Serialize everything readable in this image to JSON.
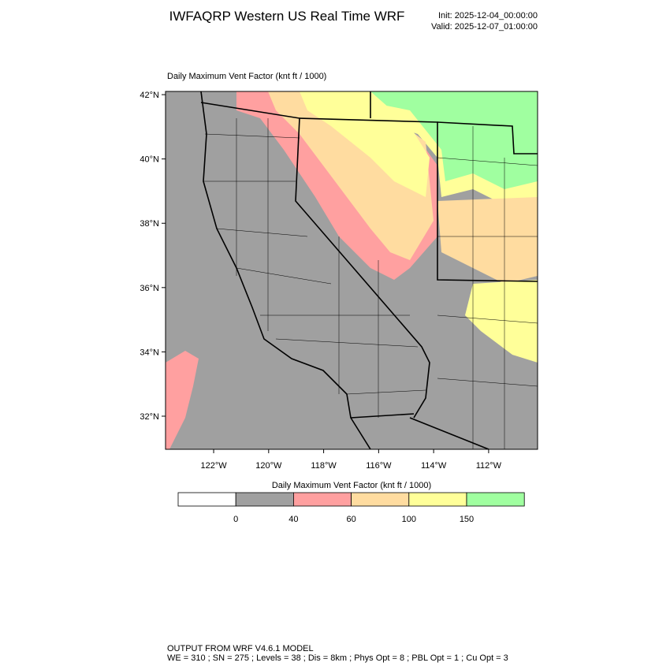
{
  "header": {
    "title": "IWFAQRP Western US Real Time WRF",
    "init": "Init: 2025-12-04_00:00:00",
    "valid": "Valid: 2025-12-07_01:00:00"
  },
  "map": {
    "title": "Daily Maximum Vent Factor   (knt ft / 1000)",
    "lonlim": [
      -123.75,
      -110.22
    ],
    "latlim": [
      30.97,
      42.1
    ],
    "latticks": [
      {
        "value": 42,
        "label": "42°N"
      },
      {
        "value": 40,
        "label": "40°N"
      },
      {
        "value": 38,
        "label": "38°N"
      },
      {
        "value": 36,
        "label": "36°N"
      },
      {
        "value": 34,
        "label": "34°N"
      },
      {
        "value": 32,
        "label": "32°N"
      }
    ],
    "lonticks": [
      {
        "value": -122,
        "label": "122°W"
      },
      {
        "value": -120,
        "label": "120°W"
      },
      {
        "value": -118,
        "label": "118°W"
      },
      {
        "value": -116,
        "label": "116°W"
      },
      {
        "value": -114,
        "label": "114°W"
      },
      {
        "value": -112,
        "label": "112°W"
      }
    ]
  },
  "colorbar": {
    "title": "Daily Maximum Vent Factor  (knt ft / 1000)",
    "levels": [
      0,
      40,
      60,
      100,
      150
    ],
    "colors": [
      "#ffffff",
      "#a0a0a0",
      "#ffa0a0",
      "#ffdca0",
      "#ffff99",
      "#a0ffa0"
    ]
  },
  "footer": {
    "line1": "OUTPUT FROM WRF V4.6.1 MODEL",
    "line2": "WE = 310 ; SN = 275 ; Levels = 38 ; Dis = 8km ; Phys Opt = 8 ; PBL Opt = 1 ; Cu Opt = 3"
  }
}
